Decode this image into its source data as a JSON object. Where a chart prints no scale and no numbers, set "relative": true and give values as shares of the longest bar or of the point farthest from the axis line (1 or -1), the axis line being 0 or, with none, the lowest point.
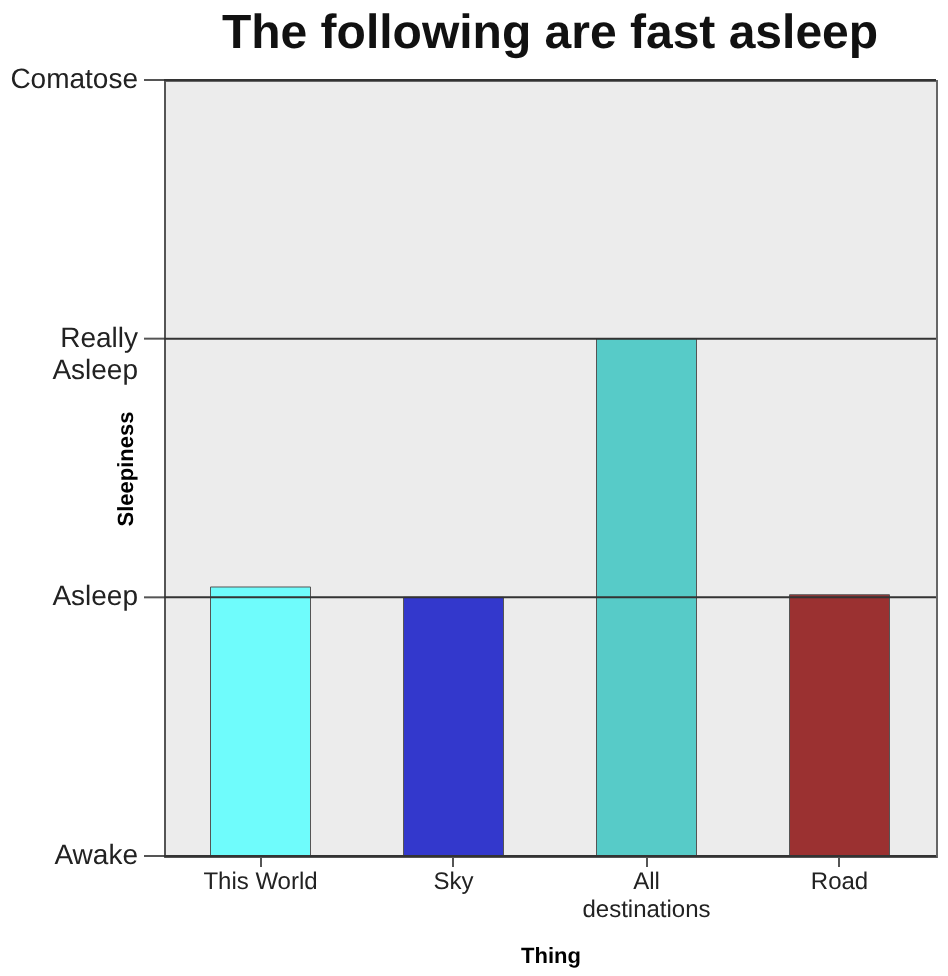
{
  "chart_data": {
    "type": "bar",
    "title": "The following are fast asleep",
    "xlabel": "Thing",
    "ylabel": "Sleepiness",
    "categories": [
      "This World",
      "Sky",
      "All destinations",
      "Road"
    ],
    "values": [
      0.52,
      0.5,
      1,
      0.505
    ],
    "colors": [
      "#6ffcfc",
      "#3338cc",
      "#57cbc8",
      "#9b3131"
    ],
    "relative": true,
    "ref_lines": [
      {
        "axis": "y",
        "value": 0,
        "label": "Awake"
      },
      {
        "axis": "y",
        "value": 0.5,
        "label": "Asleep"
      },
      {
        "axis": "y",
        "value": 1,
        "label": "Really Asleep"
      },
      {
        "axis": "y",
        "value": 1.5,
        "label": "Comatose"
      }
    ],
    "legend": false
  }
}
